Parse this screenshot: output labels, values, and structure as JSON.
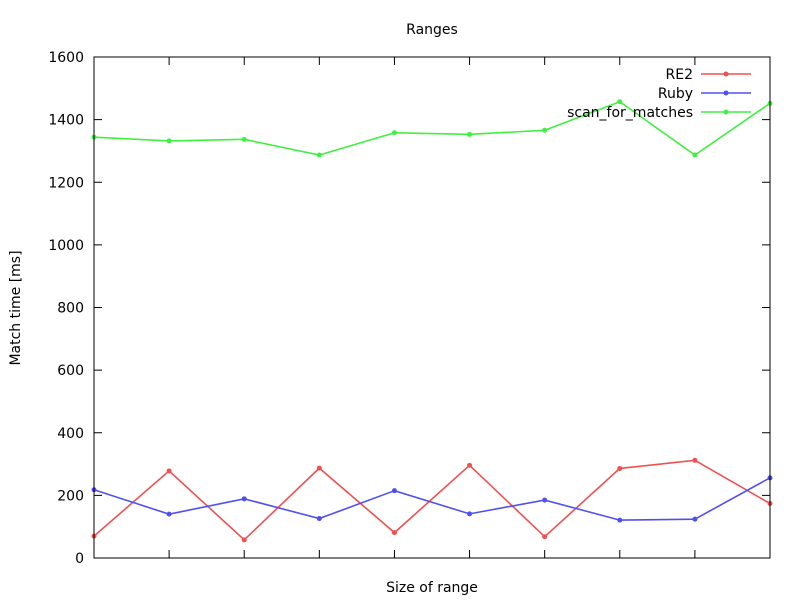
{
  "chart_data": {
    "type": "line",
    "title": "Ranges",
    "xlabel": "Size of range",
    "ylabel": "Match time [ms]",
    "ylim": [
      0,
      1600
    ],
    "yticks": [
      "0",
      "200",
      "400",
      "600",
      "800",
      "1000",
      "1200",
      "1400",
      "1600"
    ],
    "x": [
      1,
      2,
      3,
      4,
      5,
      6,
      7,
      8,
      9,
      10
    ],
    "xlim": [
      1,
      10
    ],
    "grid": false,
    "legend_position": "top-right",
    "series": [
      {
        "name": "RE2",
        "color": "#f05050",
        "values": [
          70,
          278,
          58,
          287,
          81,
          296,
          68,
          286,
          312,
          174
        ]
      },
      {
        "name": "Ruby",
        "color": "#5050f0",
        "values": [
          218,
          140,
          189,
          126,
          215,
          141,
          185,
          121,
          124,
          256
        ]
      },
      {
        "name": "scan_for_matches",
        "color": "#40f040",
        "values": [
          1344,
          1332,
          1337,
          1287,
          1358,
          1353,
          1366,
          1457,
          1287,
          1452
        ]
      }
    ]
  }
}
